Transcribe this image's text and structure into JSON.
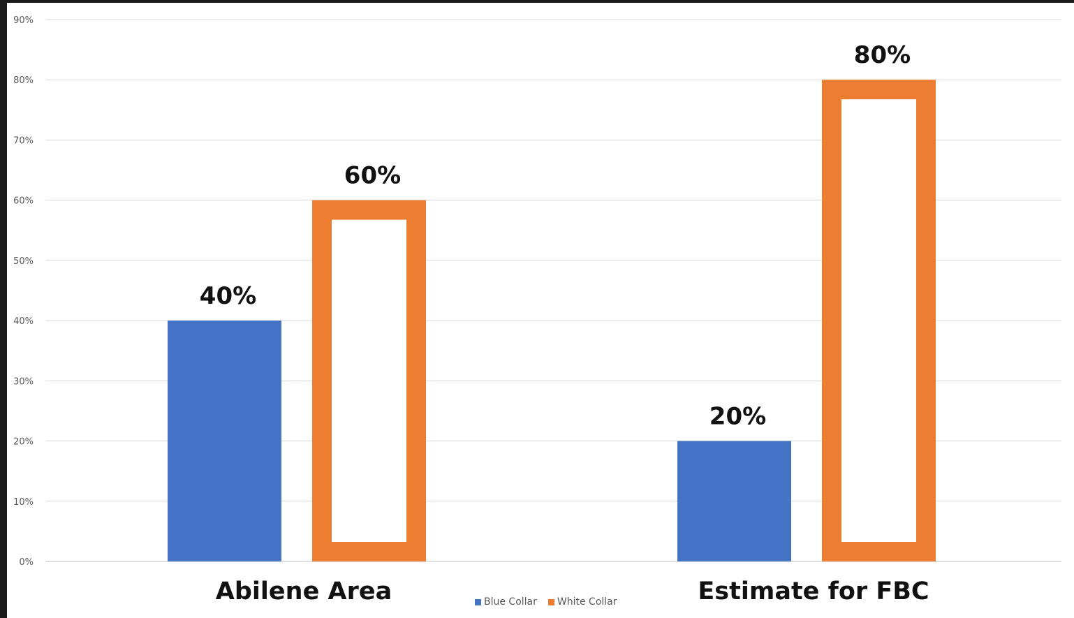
{
  "chart_data": {
    "type": "bar",
    "categories": [
      "Abilene Area",
      "Estimate for FBC"
    ],
    "series": [
      {
        "name": "Blue Collar",
        "values": [
          40,
          20
        ],
        "color": "#4472c4",
        "style": "filled"
      },
      {
        "name": "White Collar",
        "values": [
          60,
          80
        ],
        "color": "#ed7d31",
        "style": "outlined"
      }
    ],
    "data_labels": [
      [
        "40%",
        "20%"
      ],
      [
        "60%",
        "80%"
      ]
    ],
    "yticks": [
      "0%",
      "10%",
      "20%",
      "30%",
      "40%",
      "50%",
      "60%",
      "70%",
      "80%",
      "90%"
    ],
    "ylim": [
      0,
      90
    ],
    "grid": true,
    "legend_position": "bottom",
    "title": "",
    "xlabel": "",
    "ylabel": ""
  },
  "legend": {
    "blue_label": "Blue Collar",
    "white_label": "White Collar"
  }
}
